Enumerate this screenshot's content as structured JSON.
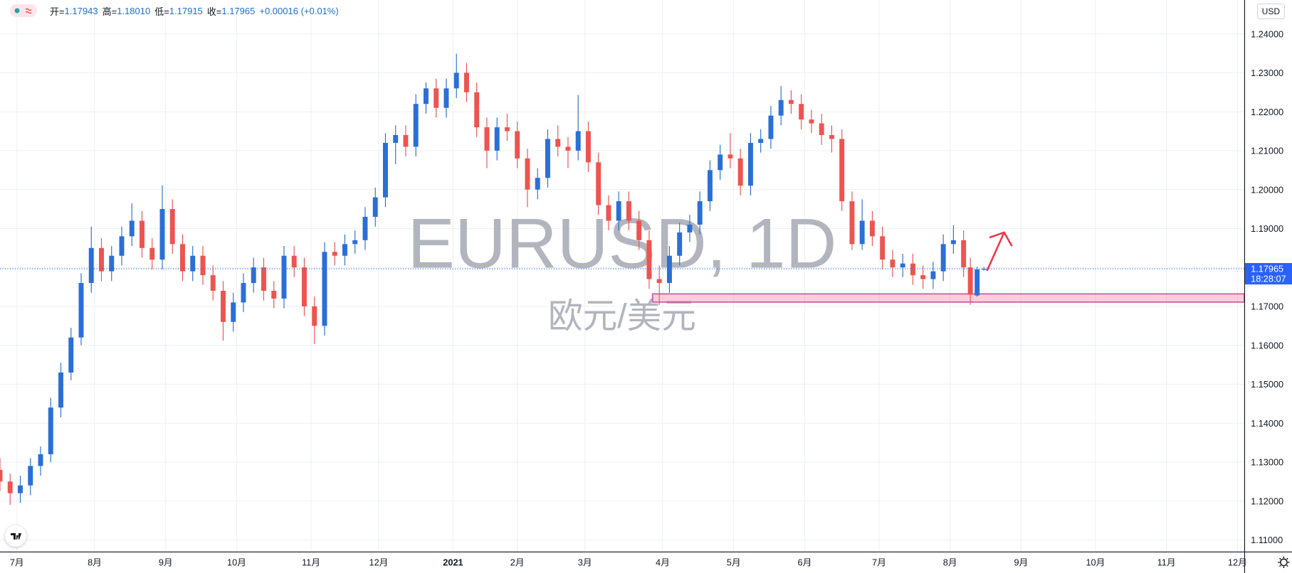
{
  "chart_data": {
    "type": "candlestick",
    "title": "EURUSD, 1D",
    "subtitle": "欧元/美元",
    "legend": {
      "items": [
        {
          "label": "开=",
          "value": "1.17943"
        },
        {
          "label": "高=",
          "value": "1.18010"
        },
        {
          "label": "低=",
          "value": "1.17915"
        },
        {
          "label": "收=",
          "value": "1.17965"
        }
      ],
      "change": "+0.00016 (+0.01%)"
    },
    "currency": "USD",
    "up_color": "#2a6fd6",
    "down_color": "#ef5350",
    "grid": true,
    "xlim": [
      0,
      368
    ],
    "ylim": [
      1.107,
      1.2487
    ],
    "xticks": [
      {
        "value": 5,
        "label": "7月"
      },
      {
        "value": 28,
        "label": "8月"
      },
      {
        "value": 49,
        "label": "9月"
      },
      {
        "value": 70,
        "label": "10月"
      },
      {
        "value": 92,
        "label": "11月"
      },
      {
        "value": 112,
        "label": "12月"
      },
      {
        "value": 134,
        "label": "2021"
      },
      {
        "value": 153,
        "label": "2月"
      },
      {
        "value": 173,
        "label": "3月"
      },
      {
        "value": 196,
        "label": "4月"
      },
      {
        "value": 217,
        "label": "5月"
      },
      {
        "value": 238,
        "label": "6月"
      },
      {
        "value": 260,
        "label": "7月"
      },
      {
        "value": 281,
        "label": "8月"
      },
      {
        "value": 302,
        "label": "9月"
      },
      {
        "value": 324,
        "label": "10月"
      },
      {
        "value": 345,
        "label": "11月"
      },
      {
        "value": 366,
        "label": "12月"
      }
    ],
    "yticks": [
      {
        "value": 1.11,
        "label": "1.11000"
      },
      {
        "value": 1.12,
        "label": "1.12000"
      },
      {
        "value": 1.13,
        "label": "1.13000"
      },
      {
        "value": 1.14,
        "label": "1.14000"
      },
      {
        "value": 1.15,
        "label": "1.15000"
      },
      {
        "value": 1.16,
        "label": "1.16000"
      },
      {
        "value": 1.17,
        "label": "1.17000"
      },
      {
        "value": 1.18,
        "label": "1.18000"
      },
      {
        "value": 1.19,
        "label": "1.19000"
      },
      {
        "value": 1.2,
        "label": "1.20000"
      },
      {
        "value": 1.21,
        "label": "1.21000"
      },
      {
        "value": 1.22,
        "label": "1.22000"
      },
      {
        "value": 1.23,
        "label": "1.23000"
      },
      {
        "value": 1.24,
        "label": "1.24000"
      }
    ],
    "candles": [
      [
        0,
        1.128,
        1.131,
        1.1225,
        1.125
      ],
      [
        3,
        1.125,
        1.127,
        1.119,
        1.122
      ],
      [
        6,
        1.122,
        1.1265,
        1.1195,
        1.124
      ],
      [
        9,
        1.124,
        1.131,
        1.1215,
        1.129
      ],
      [
        12,
        1.129,
        1.134,
        1.1265,
        1.132
      ],
      [
        15,
        1.132,
        1.1465,
        1.13,
        1.144
      ],
      [
        18,
        1.144,
        1.1555,
        1.1415,
        1.153
      ],
      [
        21,
        1.153,
        1.1645,
        1.151,
        1.162
      ],
      [
        24,
        1.162,
        1.1785,
        1.16,
        1.176
      ],
      [
        27,
        1.176,
        1.1905,
        1.1735,
        1.185
      ],
      [
        30,
        1.185,
        1.1875,
        1.1765,
        1.179
      ],
      [
        33,
        1.179,
        1.1855,
        1.1765,
        1.183
      ],
      [
        36,
        1.183,
        1.1905,
        1.1805,
        1.188
      ],
      [
        39,
        1.188,
        1.1965,
        1.1855,
        1.192
      ],
      [
        42,
        1.192,
        1.1945,
        1.1825,
        1.185
      ],
      [
        45,
        1.185,
        1.1875,
        1.1795,
        1.182
      ],
      [
        48,
        1.182,
        1.2011,
        1.1795,
        1.195
      ],
      [
        51,
        1.195,
        1.1975,
        1.1835,
        1.186
      ],
      [
        54,
        1.186,
        1.1885,
        1.1765,
        1.179
      ],
      [
        57,
        1.179,
        1.1855,
        1.1765,
        1.183
      ],
      [
        60,
        1.183,
        1.1855,
        1.1755,
        1.178
      ],
      [
        63,
        1.178,
        1.1805,
        1.1715,
        1.174
      ],
      [
        66,
        1.174,
        1.1765,
        1.1612,
        1.166
      ],
      [
        69,
        1.166,
        1.1735,
        1.1635,
        1.171
      ],
      [
        72,
        1.171,
        1.1785,
        1.1685,
        1.176
      ],
      [
        75,
        1.176,
        1.1825,
        1.1735,
        1.18
      ],
      [
        78,
        1.18,
        1.1825,
        1.1715,
        1.174
      ],
      [
        81,
        1.174,
        1.1765,
        1.1695,
        1.172
      ],
      [
        84,
        1.172,
        1.1855,
        1.1695,
        1.183
      ],
      [
        87,
        1.183,
        1.1855,
        1.1775,
        1.18
      ],
      [
        90,
        1.18,
        1.1825,
        1.1675,
        1.17
      ],
      [
        93,
        1.17,
        1.1725,
        1.1603,
        1.165
      ],
      [
        96,
        1.165,
        1.1865,
        1.1625,
        1.184
      ],
      [
        99,
        1.184,
        1.1865,
        1.1805,
        1.183
      ],
      [
        102,
        1.183,
        1.1885,
        1.1805,
        1.186
      ],
      [
        105,
        1.186,
        1.1895,
        1.1835,
        1.187
      ],
      [
        108,
        1.187,
        1.1955,
        1.1845,
        1.193
      ],
      [
        111,
        1.193,
        1.2005,
        1.1905,
        1.198
      ],
      [
        114,
        1.198,
        1.2145,
        1.1955,
        1.212
      ],
      [
        117,
        1.212,
        1.2165,
        1.2065,
        1.214
      ],
      [
        120,
        1.214,
        1.2165,
        1.2085,
        1.211
      ],
      [
        123,
        1.211,
        1.2245,
        1.2085,
        1.222
      ],
      [
        126,
        1.222,
        1.2275,
        1.2195,
        1.226
      ],
      [
        129,
        1.226,
        1.2285,
        1.2185,
        1.221
      ],
      [
        132,
        1.221,
        1.2285,
        1.2185,
        1.226
      ],
      [
        135,
        1.226,
        1.2349,
        1.2235,
        1.23
      ],
      [
        138,
        1.23,
        1.2325,
        1.2225,
        1.225
      ],
      [
        141,
        1.225,
        1.2275,
        1.2135,
        1.216
      ],
      [
        144,
        1.216,
        1.2185,
        1.2055,
        1.21
      ],
      [
        147,
        1.21,
        1.2185,
        1.2075,
        1.216
      ],
      [
        150,
        1.216,
        1.2195,
        1.2125,
        1.215
      ],
      [
        153,
        1.215,
        1.2175,
        1.2055,
        1.208
      ],
      [
        156,
        1.208,
        1.2105,
        1.1955,
        1.2
      ],
      [
        159,
        1.2,
        1.2055,
        1.1975,
        1.203
      ],
      [
        162,
        1.203,
        1.2155,
        1.2005,
        1.213
      ],
      [
        165,
        1.213,
        1.2165,
        1.2085,
        1.211
      ],
      [
        168,
        1.211,
        1.2135,
        1.2055,
        1.21
      ],
      [
        171,
        1.21,
        1.2243,
        1.2075,
        1.215
      ],
      [
        174,
        1.215,
        1.2175,
        1.2045,
        1.207
      ],
      [
        177,
        1.207,
        1.2095,
        1.1935,
        1.196
      ],
      [
        180,
        1.196,
        1.1985,
        1.1895,
        1.192
      ],
      [
        183,
        1.192,
        1.1995,
        1.1895,
        1.197
      ],
      [
        186,
        1.197,
        1.1995,
        1.1895,
        1.192
      ],
      [
        189,
        1.192,
        1.1945,
        1.1845,
        1.187
      ],
      [
        192,
        1.187,
        1.1895,
        1.1745,
        1.177
      ],
      [
        195,
        1.177,
        1.1805,
        1.1704,
        1.176
      ],
      [
        198,
        1.176,
        1.1855,
        1.1735,
        1.183
      ],
      [
        201,
        1.183,
        1.1915,
        1.1805,
        1.189
      ],
      [
        204,
        1.189,
        1.1935,
        1.1865,
        1.191
      ],
      [
        207,
        1.191,
        1.1995,
        1.1885,
        1.197
      ],
      [
        210,
        1.197,
        1.2075,
        1.1945,
        1.205
      ],
      [
        213,
        1.205,
        1.2115,
        1.2025,
        1.209
      ],
      [
        216,
        1.209,
        1.2145,
        1.2055,
        1.208
      ],
      [
        219,
        1.208,
        1.2105,
        1.1985,
        1.201
      ],
      [
        222,
        1.201,
        1.2145,
        1.1985,
        1.212
      ],
      [
        225,
        1.212,
        1.2155,
        1.2095,
        1.213
      ],
      [
        228,
        1.213,
        1.2215,
        1.2105,
        1.219
      ],
      [
        231,
        1.219,
        1.2266,
        1.2165,
        1.223
      ],
      [
        234,
        1.223,
        1.2255,
        1.2195,
        1.222
      ],
      [
        237,
        1.222,
        1.2245,
        1.2155,
        1.218
      ],
      [
        240,
        1.218,
        1.2205,
        1.2145,
        1.217
      ],
      [
        243,
        1.217,
        1.2195,
        1.2115,
        1.214
      ],
      [
        246,
        1.214,
        1.2165,
        1.2095,
        1.213
      ],
      [
        249,
        1.213,
        1.2155,
        1.1945,
        1.197
      ],
      [
        252,
        1.197,
        1.1995,
        1.1845,
        1.186
      ],
      [
        255,
        1.186,
        1.1975,
        1.1845,
        1.192
      ],
      [
        258,
        1.192,
        1.1945,
        1.1855,
        1.188
      ],
      [
        261,
        1.188,
        1.1905,
        1.1795,
        1.182
      ],
      [
        264,
        1.182,
        1.1845,
        1.1775,
        1.18
      ],
      [
        267,
        1.18,
        1.1835,
        1.1775,
        1.181
      ],
      [
        270,
        1.181,
        1.1835,
        1.1755,
        1.178
      ],
      [
        273,
        1.178,
        1.1805,
        1.1745,
        1.177
      ],
      [
        276,
        1.177,
        1.1815,
        1.1745,
        1.179
      ],
      [
        279,
        1.179,
        1.1885,
        1.1765,
        1.186
      ],
      [
        282,
        1.186,
        1.1909,
        1.1835,
        1.187
      ],
      [
        285,
        1.187,
        1.1895,
        1.1775,
        1.18
      ],
      [
        287,
        1.18,
        1.1825,
        1.1704,
        1.173
      ],
      [
        289,
        1.1728,
        1.1802,
        1.1725,
        1.1795
      ],
      [
        291,
        1.17943,
        1.1801,
        1.17915,
        1.17965
      ]
    ],
    "last_price": {
      "value": 1.17965,
      "label": "1.17965"
    },
    "countdown": "18:28:07",
    "zone": {
      "x": 193,
      "top": 1.1732,
      "bottom": 1.1711
    },
    "arrow": {
      "x": [
        292,
        297
      ],
      "y": [
        1.1793,
        1.189
      ]
    }
  }
}
